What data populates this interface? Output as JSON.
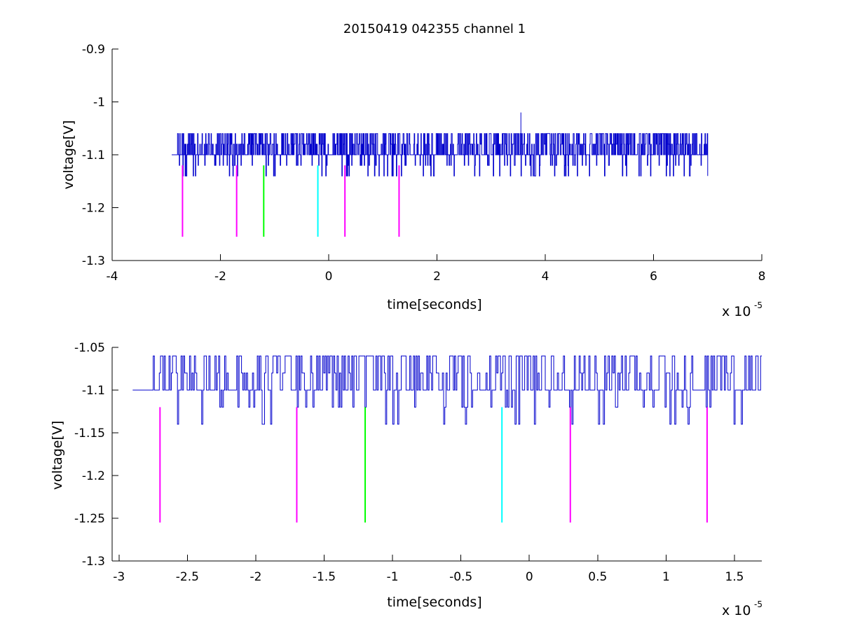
{
  "figure": {
    "title": "20150419 042355 channel 1",
    "colors": {
      "trace": "#0000cc",
      "magenta": "#ff00ff",
      "green": "#00ff00",
      "cyan": "#00ffff"
    }
  },
  "chart_data": [
    {
      "type": "line",
      "title": "20150419 042355 channel 1",
      "xlabel": "time[seconds]",
      "ylabel": "voltage[V]",
      "x_multiplier": "x 10",
      "x_exponent": "-5",
      "xlim": [
        -4,
        8
      ],
      "ylim": [
        -1.3,
        -0.9
      ],
      "xticks": [
        -4,
        -2,
        0,
        2,
        4,
        6,
        8
      ],
      "xtick_labels": [
        "-4",
        "-2",
        "0",
        "2",
        "4",
        "6",
        "8"
      ],
      "yticks": [
        -1.3,
        -1.2,
        -1.1,
        -1,
        -0.9
      ],
      "ytick_labels": [
        "-1.3",
        "-1.2",
        "-1.1",
        "-1",
        "-0.9"
      ],
      "grid": false,
      "trace": {
        "name": "",
        "x_range": [
          -2.9,
          7.0
        ],
        "baseline": -1.1,
        "levels": [
          -1.14,
          -1.12,
          -1.1,
          -1.08,
          -1.06
        ],
        "spike": {
          "x": 3.55,
          "y": -1.02
        }
      },
      "markers": [
        {
          "x": -2.7,
          "y_top": -1.12,
          "y_bottom": -1.255,
          "color": "magenta"
        },
        {
          "x": -1.7,
          "y_top": -1.12,
          "y_bottom": -1.255,
          "color": "magenta"
        },
        {
          "x": -1.2,
          "y_top": -1.12,
          "y_bottom": -1.255,
          "color": "green"
        },
        {
          "x": -0.2,
          "y_top": -1.12,
          "y_bottom": -1.255,
          "color": "cyan"
        },
        {
          "x": 0.3,
          "y_top": -1.12,
          "y_bottom": -1.255,
          "color": "magenta"
        },
        {
          "x": 1.3,
          "y_top": -1.12,
          "y_bottom": -1.255,
          "color": "magenta"
        }
      ]
    },
    {
      "type": "line",
      "title": "",
      "xlabel": "time[seconds]",
      "ylabel": "voltage[V]",
      "x_multiplier": "x 10",
      "x_exponent": "-5",
      "xlim": [
        -3.05,
        1.7
      ],
      "ylim": [
        -1.3,
        -1.05
      ],
      "xticks": [
        -3,
        -2.5,
        -2,
        -1.5,
        -1,
        -0.5,
        0,
        0.5,
        1,
        1.5
      ],
      "xtick_labels": [
        "-3",
        "-2.5",
        "-2",
        "-1.5",
        "-1",
        "-0.5",
        "0",
        "0.5",
        "1",
        "1.5"
      ],
      "yticks": [
        -1.3,
        -1.25,
        -1.2,
        -1.15,
        -1.1,
        -1.05
      ],
      "ytick_labels": [
        "-1.3",
        "-1.25",
        "-1.2",
        "-1.15",
        "-1.1",
        "-1.05"
      ],
      "grid": false,
      "trace": {
        "name": "",
        "x_range": [
          -2.9,
          1.7
        ],
        "baseline": -1.1,
        "levels": [
          -1.14,
          -1.12,
          -1.1,
          -1.08,
          -1.06
        ]
      },
      "markers": [
        {
          "x": -2.7,
          "y_top": -1.12,
          "y_bottom": -1.255,
          "color": "magenta"
        },
        {
          "x": -1.7,
          "y_top": -1.12,
          "y_bottom": -1.255,
          "color": "magenta"
        },
        {
          "x": -1.2,
          "y_top": -1.12,
          "y_bottom": -1.255,
          "color": "green"
        },
        {
          "x": -0.2,
          "y_top": -1.12,
          "y_bottom": -1.255,
          "color": "cyan"
        },
        {
          "x": 0.3,
          "y_top": -1.12,
          "y_bottom": -1.255,
          "color": "magenta"
        },
        {
          "x": 1.3,
          "y_top": -1.12,
          "y_bottom": -1.255,
          "color": "magenta"
        }
      ]
    }
  ]
}
